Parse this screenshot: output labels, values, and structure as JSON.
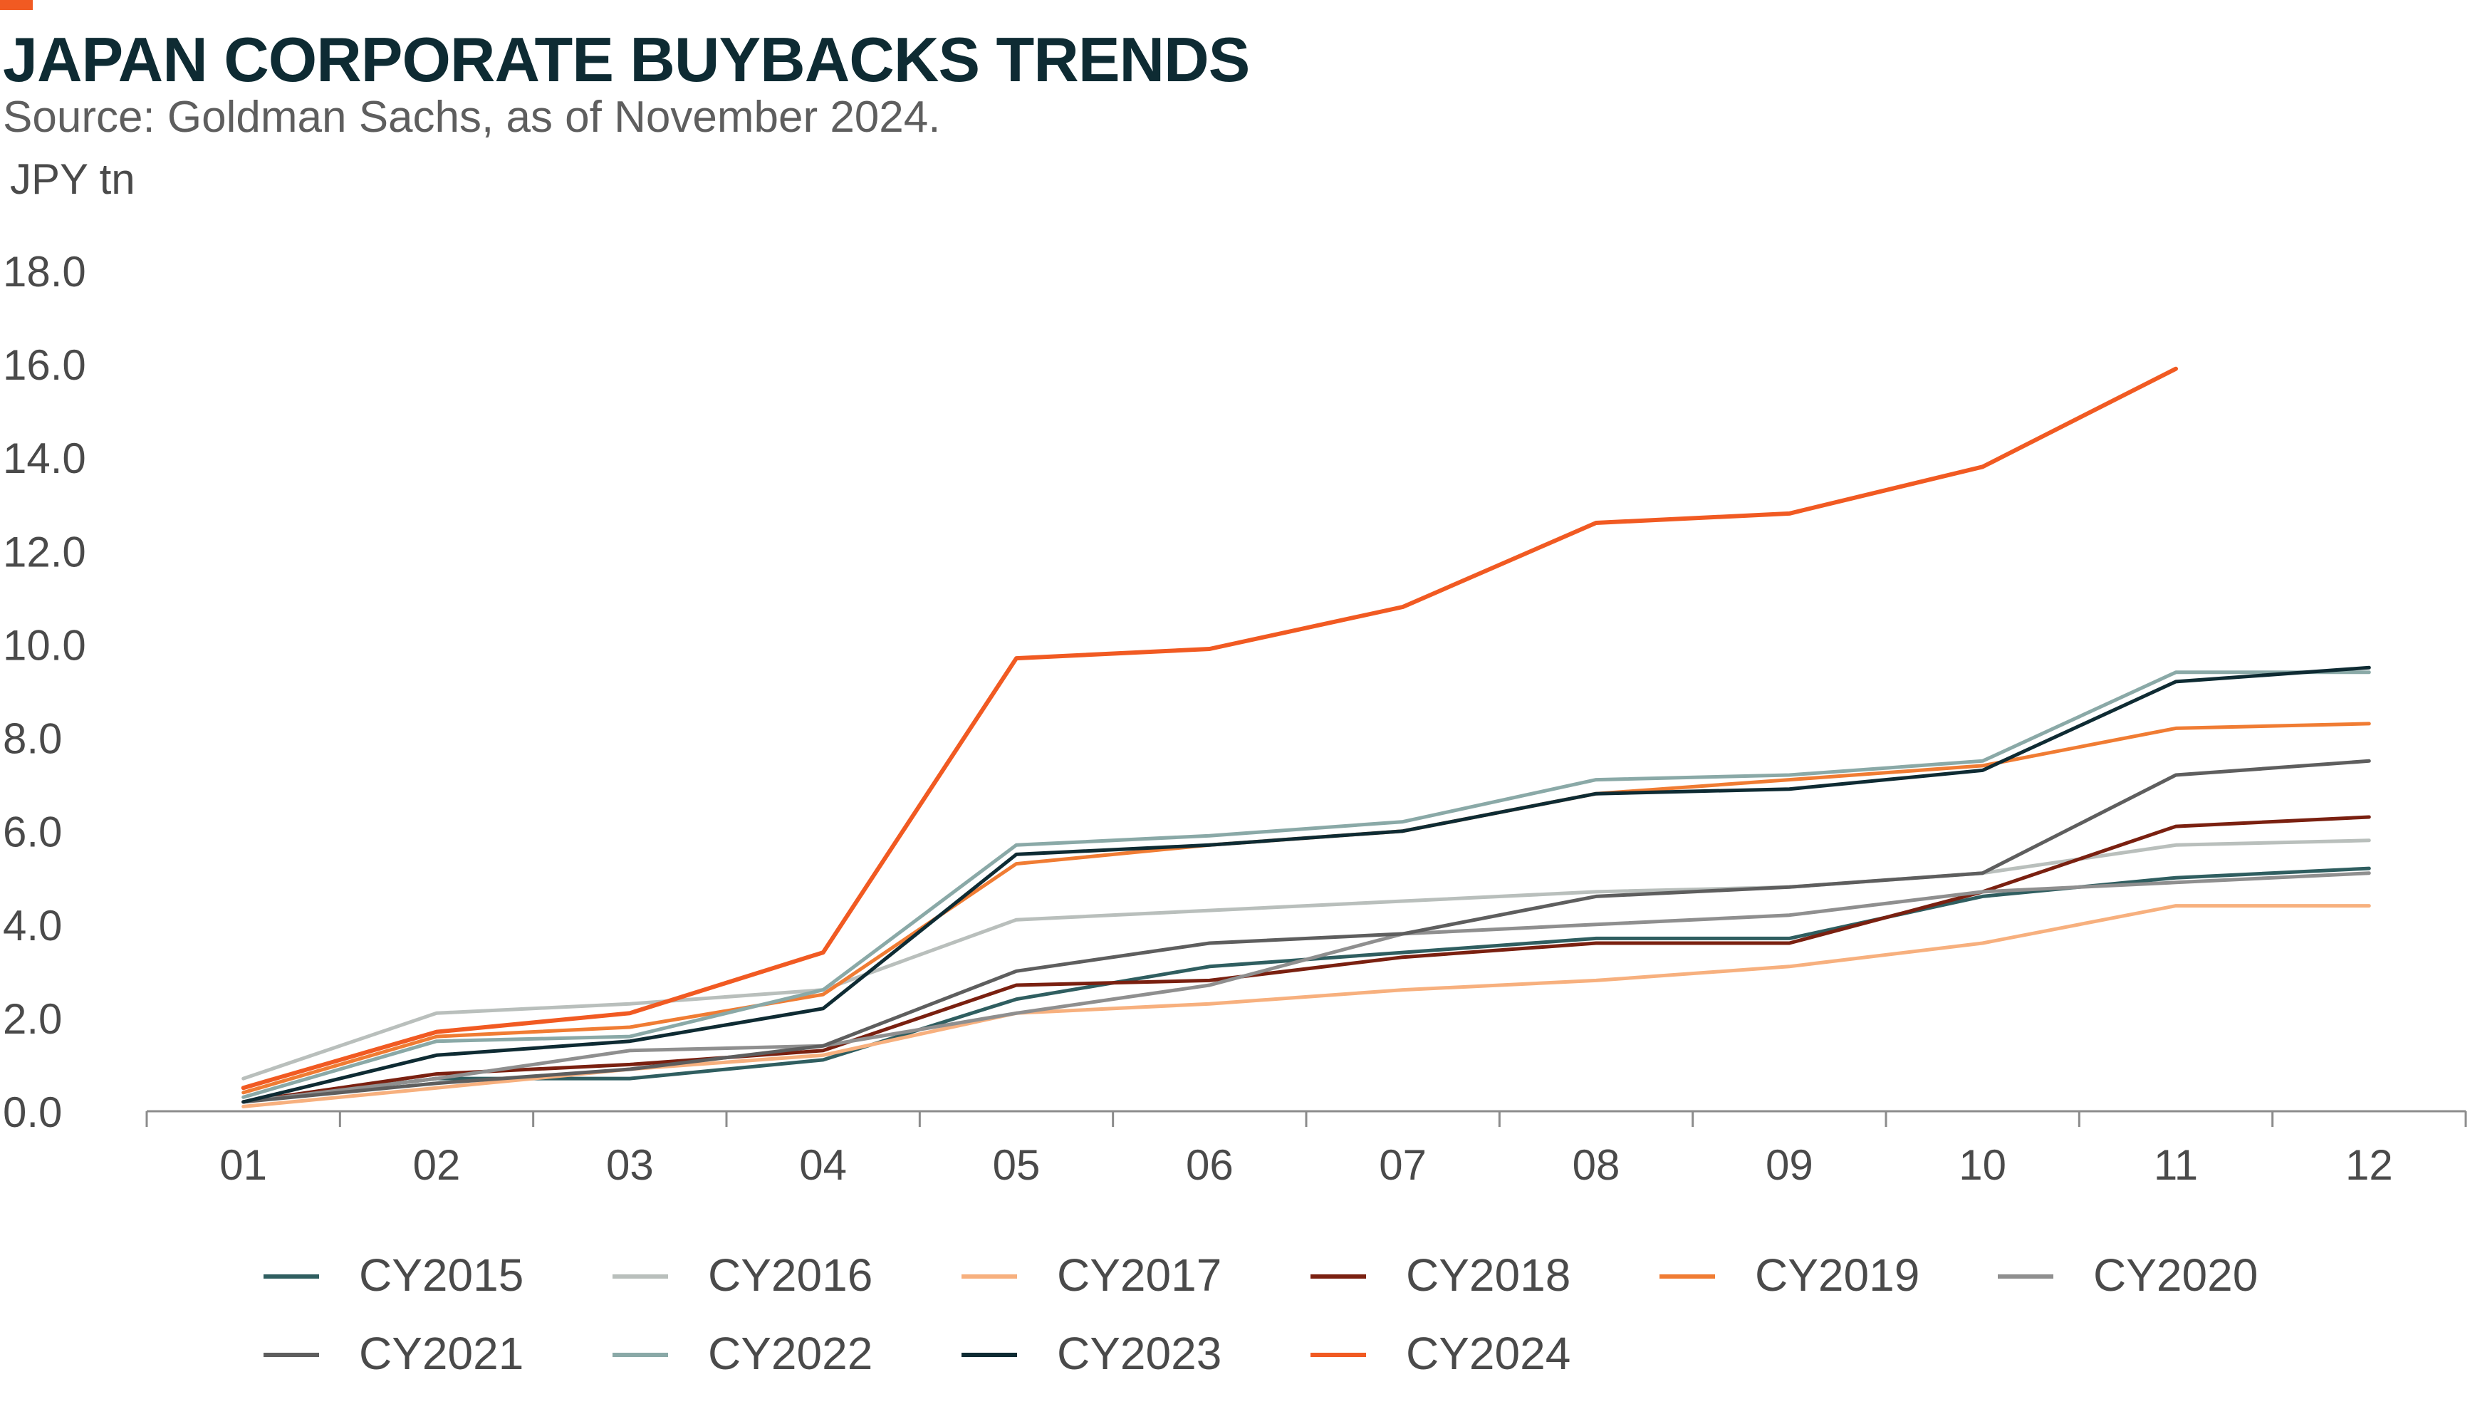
{
  "header": {
    "title": "JAPAN CORPORATE BUYBACKS TRENDS",
    "subtitle": "Source: Goldman Sachs, as of November 2024."
  },
  "chart_data": {
    "type": "line",
    "y_unit": "JPY tn",
    "ylim": [
      0,
      18
    ],
    "yticks": [
      "0.0",
      "2.0",
      "4.0",
      "6.0",
      "8.0",
      "10.0",
      "12.0",
      "14.0",
      "16.0",
      "18.0"
    ],
    "categories": [
      "01",
      "02",
      "03",
      "04",
      "05",
      "06",
      "07",
      "08",
      "09",
      "10",
      "11",
      "12"
    ],
    "grid": false,
    "legend_position": "bottom",
    "series": [
      {
        "name": "CY2015",
        "color": "#2f5e60",
        "values": [
          0.2,
          0.7,
          0.7,
          1.1,
          2.4,
          3.1,
          3.4,
          3.7,
          3.7,
          4.6,
          5.0,
          5.2
        ]
      },
      {
        "name": "CY2016",
        "color": "#b9bfbc",
        "values": [
          0.7,
          2.1,
          2.3,
          2.6,
          4.1,
          4.3,
          4.5,
          4.7,
          4.8,
          5.1,
          5.7,
          5.8
        ]
      },
      {
        "name": "CY2017",
        "color": "#f7b07e",
        "values": [
          0.1,
          0.5,
          0.9,
          1.2,
          2.1,
          2.3,
          2.6,
          2.8,
          3.1,
          3.6,
          4.4,
          4.4
        ]
      },
      {
        "name": "CY2018",
        "color": "#7a2010",
        "values": [
          0.2,
          0.8,
          1.0,
          1.3,
          2.7,
          2.8,
          3.3,
          3.6,
          3.6,
          4.7,
          6.1,
          6.3
        ]
      },
      {
        "name": "CY2019",
        "color": "#f07c33",
        "values": [
          0.4,
          1.6,
          1.8,
          2.5,
          5.3,
          5.7,
          6.0,
          6.8,
          7.1,
          7.4,
          8.2,
          8.3
        ]
      },
      {
        "name": "CY2020",
        "color": "#8f8f8f",
        "values": [
          0.2,
          0.7,
          1.3,
          1.4,
          2.1,
          2.7,
          3.8,
          4.0,
          4.2,
          4.7,
          4.9,
          5.1
        ]
      },
      {
        "name": "CY2021",
        "color": "#5e5e5e",
        "values": [
          0.2,
          0.6,
          0.9,
          1.4,
          3.0,
          3.6,
          3.8,
          4.6,
          4.8,
          5.1,
          7.2,
          7.5
        ]
      },
      {
        "name": "CY2022",
        "color": "#8aa9a7",
        "values": [
          0.3,
          1.5,
          1.6,
          2.6,
          5.7,
          5.9,
          6.2,
          7.1,
          7.2,
          7.5,
          9.4,
          9.4
        ]
      },
      {
        "name": "CY2023",
        "color": "#0e2b33",
        "values": [
          0.2,
          1.2,
          1.5,
          2.2,
          5.5,
          5.7,
          6.0,
          6.8,
          6.9,
          7.3,
          9.2,
          9.5
        ]
      },
      {
        "name": "CY2024",
        "color": "#f15a22",
        "values": [
          0.5,
          1.7,
          2.1,
          3.4,
          9.7,
          9.9,
          10.8,
          12.6,
          12.8,
          13.8,
          15.9,
          null
        ]
      }
    ]
  }
}
